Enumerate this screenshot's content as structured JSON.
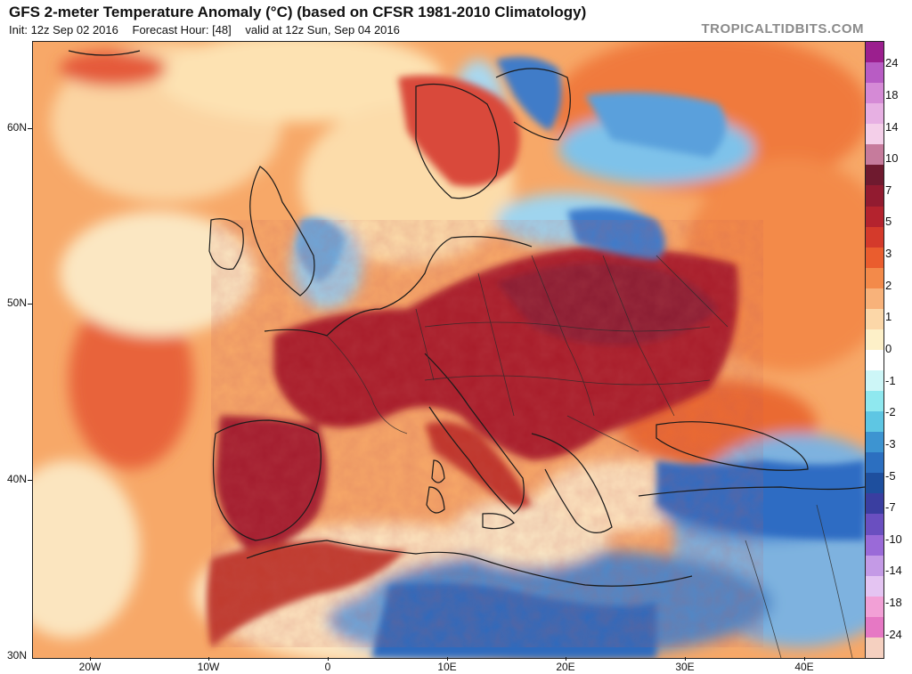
{
  "header": {
    "title": "GFS 2-meter Temperature Anomaly (°C) (based on CFSR 1981-2010 Climatology)",
    "init": "Init: 12z Sep 02 2016",
    "forecast_hour": "Forecast Hour: [48]",
    "valid": "valid at 12z Sun, Sep 04 2016"
  },
  "watermark": "TROPICALTIDBITS.COM",
  "axes": {
    "lat_labels": [
      "60N",
      "50N",
      "40N",
      "30N"
    ],
    "lon_labels": [
      "20W",
      "10W",
      "0",
      "10E",
      "20E",
      "30E",
      "40E"
    ]
  },
  "colorbar": {
    "labels": [
      "24",
      "18",
      "14",
      "10",
      "7",
      "5",
      "3",
      "2",
      "1",
      "0",
      "-1",
      "-2",
      "-3",
      "-5",
      "-7",
      "-10",
      "-14",
      "-18",
      "-24"
    ],
    "colors": [
      "#9b1f8e",
      "#b85cc4",
      "#d58ad6",
      "#e7b0e3",
      "#f4cfe9",
      "#c67b9c",
      "#6f1a2f",
      "#921b30",
      "#b4232e",
      "#d43a2b",
      "#ea5d2e",
      "#f38a4a",
      "#f8b27a",
      "#fcd7a8",
      "#fdf0c8",
      "#ffffff",
      "#cdf6f7",
      "#8fe8ef",
      "#5ec6e3",
      "#3d94d1",
      "#2c6fc0",
      "#1e4f9e",
      "#3a3ea0",
      "#6a4fc0",
      "#9a6ad8",
      "#c49ae6",
      "#e4c4f2",
      "#f2a0d6",
      "#e678c4",
      "#f5d0c0"
    ]
  }
}
